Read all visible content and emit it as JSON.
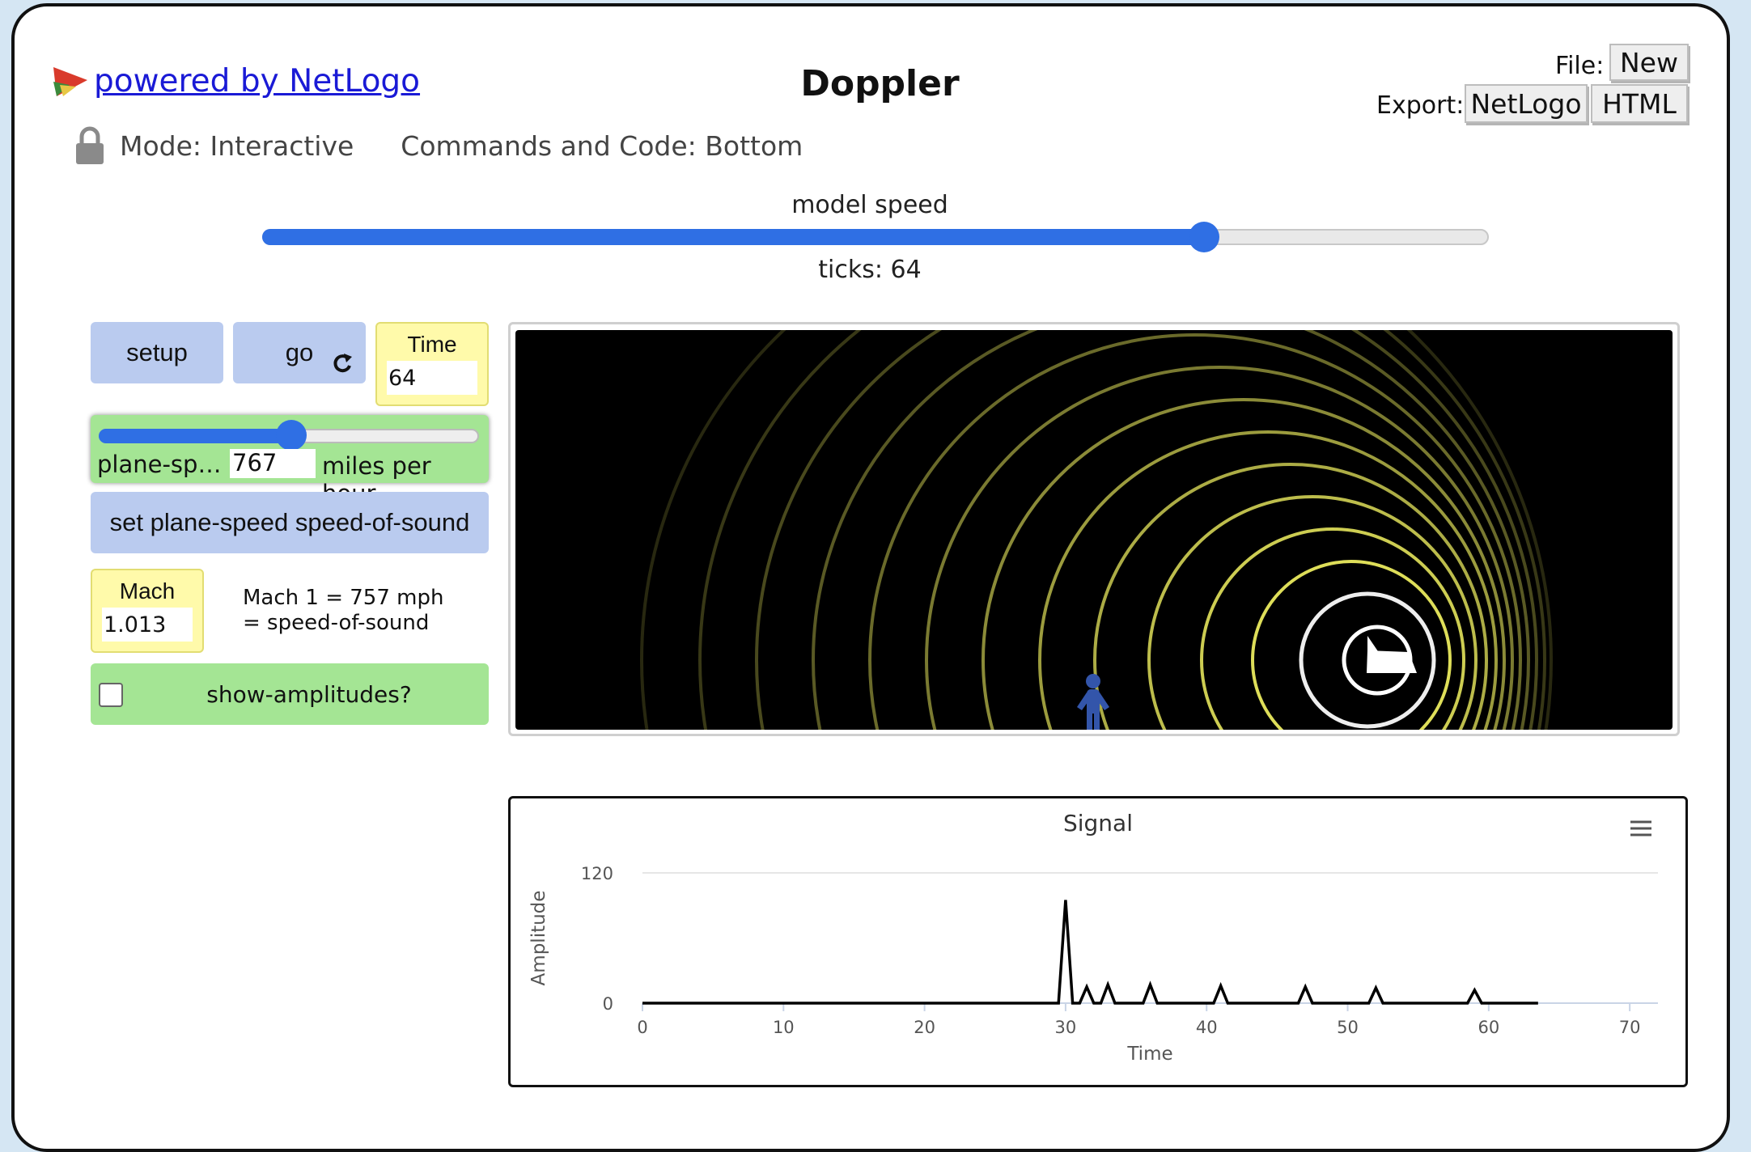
{
  "header": {
    "link_text": "powered by NetLogo",
    "title": "Doppler",
    "file_label": "File:",
    "new_button": "New",
    "export_label": "Export:",
    "export_netlogo": "NetLogo",
    "export_html": "HTML",
    "mode_text": "Mode: Interactive",
    "commands_text": "Commands and Code: Bottom",
    "icons": [
      "netlogo-logo-icon",
      "lock-icon"
    ]
  },
  "speed": {
    "label": "model speed",
    "value_fraction": 0.77,
    "ticks_text": "ticks: 64"
  },
  "widgets": {
    "setup_label": "setup",
    "go_label": "go",
    "go_icon": "forever-arrow-icon",
    "time_monitor": {
      "label": "Time",
      "value": "64"
    },
    "plane_speed": {
      "label": "plane-sp…",
      "value": "767",
      "units": "miles per hour",
      "fraction": 0.52
    },
    "set_button_label": "set plane-speed speed-of-sound",
    "mach_monitor": {
      "label": "Mach",
      "value": "1.013"
    },
    "note_text": "Mach 1 = 757 mph\n= speed-of-sound",
    "switch": {
      "label": "show-amplitudes?",
      "checked": false
    }
  },
  "view": {
    "background": "#000000",
    "wave_color": "#ffff66",
    "walker_color": "#3355aa",
    "plane_color": "#ffffff"
  },
  "plot": {
    "menu_icon": "hamburger-menu-icon",
    "chart_data": {
      "type": "line",
      "title": "Signal",
      "xlabel": "Time",
      "ylabel": "Amplitude",
      "xlim": [
        0,
        72
      ],
      "ylim": [
        0,
        120
      ],
      "x_ticks": [
        0,
        10,
        20,
        30,
        40,
        50,
        60,
        70
      ],
      "y_ticks": [
        0,
        120
      ],
      "series": [
        {
          "color": "#000000",
          "x": [
            0,
            29.5,
            30,
            30.5,
            31,
            31.5,
            32,
            32.5,
            33,
            33.5,
            35.5,
            36,
            36.5,
            40.5,
            41,
            41.5,
            46.5,
            47,
            47.5,
            51.5,
            52,
            52.5,
            58.5,
            59,
            59.5,
            63.5
          ],
          "y": [
            0,
            0,
            95,
            0,
            0,
            15,
            0,
            0,
            17,
            0,
            0,
            17,
            0,
            0,
            16,
            0,
            0,
            15,
            0,
            0,
            14,
            0,
            0,
            12,
            0,
            0
          ]
        }
      ]
    }
  }
}
